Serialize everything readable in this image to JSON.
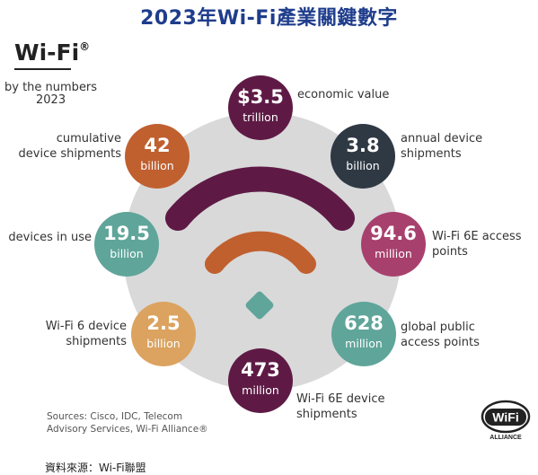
{
  "title": "2023年Wi-Fi產業關鍵數字",
  "brand": {
    "name": "Wi-Fi",
    "mark": "®",
    "tagline1": "by the numbers",
    "tagline2": "2023"
  },
  "stats": [
    {
      "value": "$3.5",
      "unit": "trillion",
      "label": [
        "economic value"
      ],
      "color": "#5e1a45"
    },
    {
      "value": "3.8",
      "unit": "billion",
      "label": [
        "annual device",
        "shipments"
      ],
      "color": "#2f3944"
    },
    {
      "value": "94.6",
      "unit": "million",
      "label": [
        "Wi-Fi 6E access",
        "points"
      ],
      "color": "#a8406d"
    },
    {
      "value": "628",
      "unit": "million",
      "label": [
        "global public",
        "access points"
      ],
      "color": "#5fa59a"
    },
    {
      "value": "473",
      "unit": "million",
      "label": [
        "Wi-Fi 6E device",
        "shipments"
      ],
      "color": "#5e1a45"
    },
    {
      "value": "2.5",
      "unit": "billion",
      "label": [
        "Wi-Fi 6 device",
        "shipments"
      ],
      "color": "#dba35f"
    },
    {
      "value": "19.5",
      "unit": "billion",
      "label": [
        "devices in use"
      ],
      "color": "#5fa59a"
    },
    {
      "value": "42",
      "unit": "billion",
      "label": [
        "cumulative",
        "device shipments"
      ],
      "color": "#c0602f"
    }
  ],
  "sources": [
    "Sources: Cisco, IDC, Telecom",
    "Advisory Services, Wi-Fi Alliance®"
  ],
  "footer": "資料來源：Wi-Fi聯盟",
  "logo": {
    "text": "WiFi",
    "sub": "ALLIANCE"
  },
  "colors": {
    "title": "#1f3d8c",
    "arc_outer": "#5e1a45",
    "arc_inner": "#c0602f",
    "diamond": "#5fa59a",
    "ring": "#d9d9d9"
  }
}
